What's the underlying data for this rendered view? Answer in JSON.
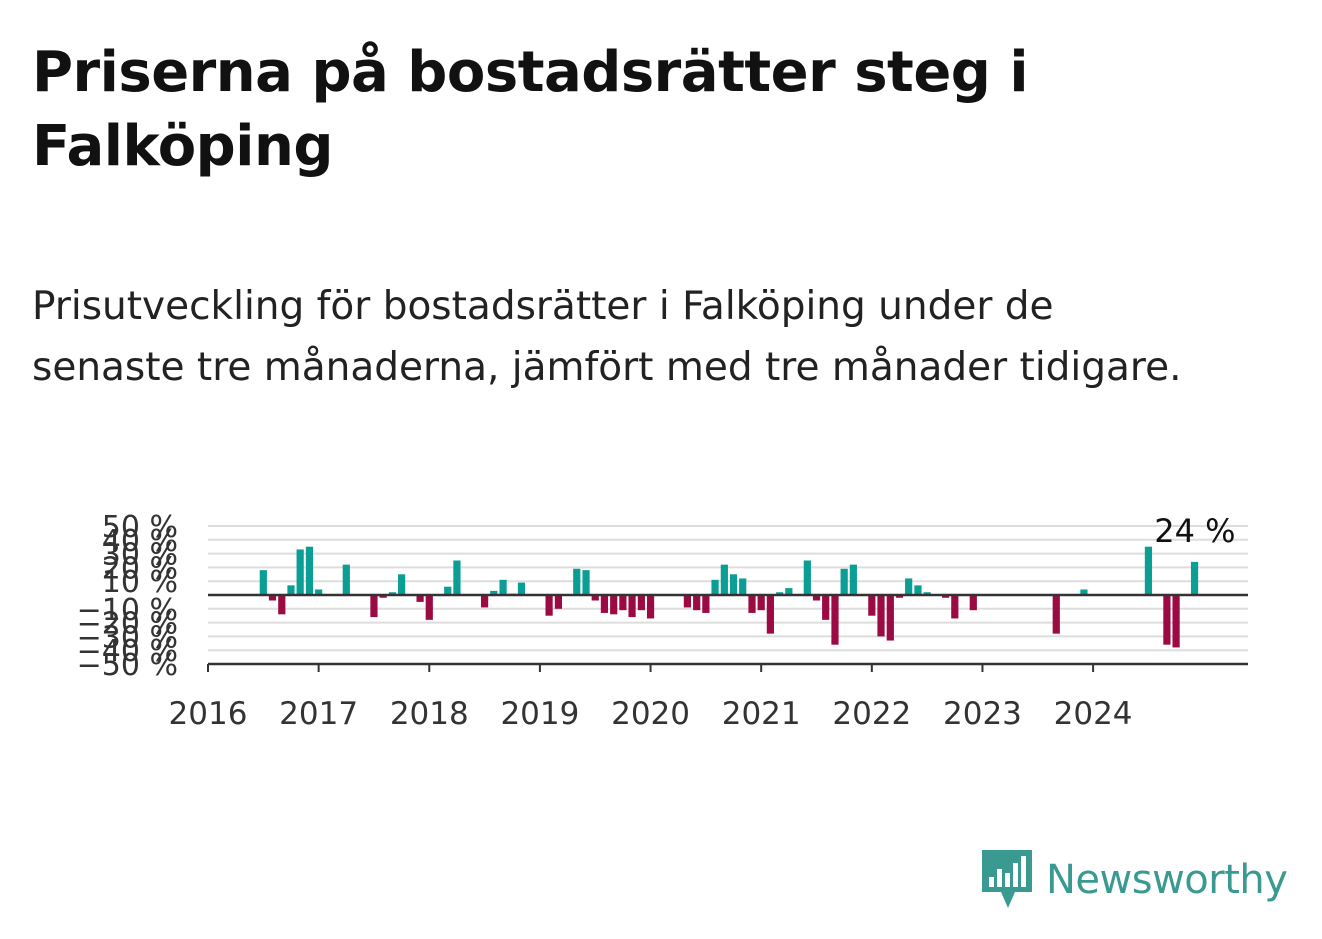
{
  "title": "Priserna på bostadsrätter steg i Falköping",
  "subtitle": "Prisutveckling för bostadsrätter i Falköping under de senaste tre månaderna, jämfört med tre månader tidigare.",
  "brand": {
    "name": "Newsworthy",
    "icon": "bar-chart-speech-bubble-icon",
    "color": "#3a9a92"
  },
  "chart_data": {
    "type": "bar",
    "title": "",
    "xlabel": "",
    "ylabel": "",
    "ylim": [
      -50,
      50
    ],
    "yticks": [
      -50,
      -40,
      -30,
      -20,
      -10,
      10,
      20,
      30,
      40,
      50
    ],
    "ytick_labels": [
      "−50 %",
      "−40 %",
      "−30 %",
      "−20 %",
      "−10 %",
      "10 %",
      "20 %",
      "30 %",
      "40 %",
      "50 %"
    ],
    "xlim": [
      2016.0,
      2025.4
    ],
    "xticks": [
      2016,
      2017,
      2018,
      2019,
      2020,
      2021,
      2022,
      2023,
      2024
    ],
    "grid": true,
    "colors": {
      "positive": "#0a9e94",
      "negative": "#9b0a42",
      "grid": "#dddddd",
      "axis": "#333333"
    },
    "annotation": {
      "text": "24 %",
      "x": 2024.917,
      "y": 24
    },
    "x": [
      2016.5,
      2016.583,
      2016.667,
      2016.75,
      2016.833,
      2016.917,
      2017.0,
      2017.25,
      2017.5,
      2017.583,
      2017.667,
      2017.75,
      2017.917,
      2018.0,
      2018.167,
      2018.25,
      2018.5,
      2018.583,
      2018.667,
      2018.75,
      2018.833,
      2019.083,
      2019.167,
      2019.333,
      2019.417,
      2019.5,
      2019.583,
      2019.667,
      2019.75,
      2019.833,
      2019.917,
      2020.0,
      2020.333,
      2020.417,
      2020.5,
      2020.583,
      2020.667,
      2020.75,
      2020.833,
      2020.917,
      2021.0,
      2021.083,
      2021.167,
      2021.25,
      2021.417,
      2021.5,
      2021.583,
      2021.667,
      2021.75,
      2021.833,
      2022.0,
      2022.083,
      2022.167,
      2022.25,
      2022.333,
      2022.417,
      2022.5,
      2022.667,
      2022.75,
      2022.917,
      2023.667,
      2023.917,
      2024.5,
      2024.667,
      2024.75,
      2024.917
    ],
    "values": [
      18,
      -4,
      -14,
      7,
      33,
      35,
      4,
      22,
      -16,
      -2,
      2,
      15,
      -5,
      -18,
      6,
      25,
      -9,
      3,
      11,
      1,
      9,
      -15,
      -10,
      19,
      18,
      -4,
      -13,
      -14,
      -11,
      -16,
      -11,
      -17,
      -9,
      -11,
      -13,
      11,
      22,
      15,
      12,
      -13,
      -11,
      -28,
      2,
      5,
      25,
      -4,
      -18,
      -36,
      19,
      22,
      -15,
      -30,
      -33,
      -2,
      12,
      7,
      2,
      -2,
      -17,
      -11,
      -28,
      4,
      35,
      -36,
      -38,
      24
    ]
  }
}
